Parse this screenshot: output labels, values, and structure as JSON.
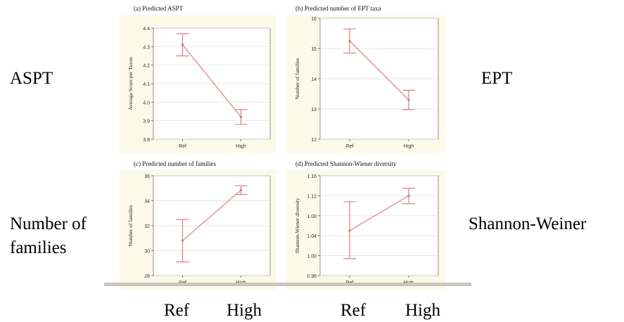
{
  "labels": {
    "aspt": "ASPT",
    "ept": "EPT",
    "families_line1": "Number of",
    "families_line2": "families",
    "shannon": "Shannon-Weiner",
    "bottom": [
      "Ref",
      "High",
      "Ref",
      "High"
    ]
  },
  "colors": {
    "panel_bg": "#fbfae8",
    "plot_bg": "#ffffff",
    "series": "#d97f86"
  },
  "chart_data": [
    {
      "type": "line",
      "title": "(a) Predicted ASPT",
      "ylabel": "Average Score per Taxon",
      "xlabel": "",
      "categories": [
        "Ref",
        "High"
      ],
      "values": [
        4.31,
        3.92
      ],
      "error_low": [
        4.25,
        3.88
      ],
      "error_high": [
        4.37,
        3.96
      ],
      "ylim": [
        3.8,
        4.4
      ],
      "yticks": [
        3.8,
        3.9,
        4.0,
        4.1,
        4.2,
        4.3,
        4.4
      ],
      "ytick_labels": [
        "3.8",
        "3.9",
        "4.0",
        "4.1",
        "4.2",
        "4.3",
        "4.4"
      ],
      "grid": true
    },
    {
      "type": "line",
      "title": "(b) Predicted number of EPT taxa",
      "ylabel": "Number of families",
      "xlabel": "",
      "categories": [
        "Ref",
        "High"
      ],
      "values": [
        15.25,
        13.3
      ],
      "error_low": [
        14.85,
        12.98
      ],
      "error_high": [
        15.65,
        13.62
      ],
      "ylim": [
        12,
        16
      ],
      "yticks": [
        12,
        13,
        14,
        15,
        16
      ],
      "ytick_labels": [
        "12",
        "13",
        "14",
        "15",
        "16"
      ],
      "grid": true
    },
    {
      "type": "line",
      "title": "(c) Predicted number of families",
      "ylabel": "Number of families",
      "xlabel": "",
      "categories": [
        "Ref",
        "High"
      ],
      "values": [
        30.8,
        34.85
      ],
      "error_low": [
        29.1,
        34.5
      ],
      "error_high": [
        32.5,
        35.2
      ],
      "ylim": [
        28,
        36
      ],
      "yticks": [
        28,
        30,
        32,
        34,
        36
      ],
      "ytick_labels": [
        "28",
        "30",
        "32",
        "34",
        "36"
      ],
      "grid": true
    },
    {
      "type": "line",
      "title": "(d) Predicted Shannon-Wiener diversity",
      "ylabel": "Shannon-Wiener diversity",
      "xlabel": "",
      "categories": [
        "Ref",
        "High"
      ],
      "values": [
        1.05,
        1.12
      ],
      "error_low": [
        0.994,
        1.104
      ],
      "error_high": [
        1.108,
        1.135
      ],
      "ylim": [
        0.96,
        1.16
      ],
      "yticks": [
        0.96,
        1.0,
        1.04,
        1.08,
        1.12,
        1.16
      ],
      "ytick_labels": [
        "0.96",
        "1.00",
        "1.04",
        "1.08",
        "1.12",
        "1.16"
      ],
      "grid": true
    }
  ]
}
